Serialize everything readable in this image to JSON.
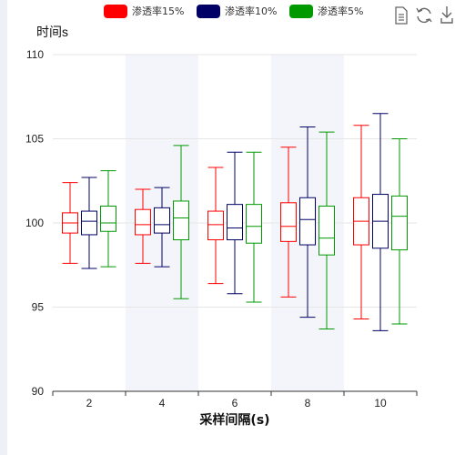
{
  "chart_data": {
    "type": "boxplot",
    "title": "",
    "xlabel": "采样间隔(s)",
    "ylabel": "时间s",
    "ylim": [
      90,
      110
    ],
    "yticks": [
      90,
      95,
      100,
      105,
      110
    ],
    "categories": [
      "2",
      "4",
      "6",
      "8",
      "10"
    ],
    "legend_position": "top",
    "grid": true,
    "banded_background": true,
    "series": [
      {
        "name": "渗透率15%",
        "color": "#ff0000",
        "boxes": [
          {
            "min": 97.6,
            "q1": 99.4,
            "median": 100.0,
            "q3": 100.6,
            "max": 102.4
          },
          {
            "min": 97.6,
            "q1": 99.3,
            "median": 99.9,
            "q3": 100.8,
            "max": 102.0
          },
          {
            "min": 96.4,
            "q1": 99.0,
            "median": 99.9,
            "q3": 100.7,
            "max": 103.3
          },
          {
            "min": 95.6,
            "q1": 98.9,
            "median": 99.8,
            "q3": 101.2,
            "max": 104.5
          },
          {
            "min": 94.3,
            "q1": 98.7,
            "median": 100.1,
            "q3": 101.5,
            "max": 105.8
          }
        ]
      },
      {
        "name": "渗透率10%",
        "color": "#000066",
        "boxes": [
          {
            "min": 97.3,
            "q1": 99.3,
            "median": 100.1,
            "q3": 100.7,
            "max": 102.7
          },
          {
            "min": 97.4,
            "q1": 99.4,
            "median": 99.9,
            "q3": 100.9,
            "max": 102.1
          },
          {
            "min": 95.8,
            "q1": 99.0,
            "median": 99.7,
            "q3": 101.1,
            "max": 104.2
          },
          {
            "min": 94.4,
            "q1": 98.7,
            "median": 100.2,
            "q3": 101.5,
            "max": 105.7
          },
          {
            "min": 93.6,
            "q1": 98.5,
            "median": 100.1,
            "q3": 101.7,
            "max": 106.5
          }
        ]
      },
      {
        "name": "渗透率5%",
        "color": "#009900",
        "boxes": [
          {
            "min": 97.4,
            "q1": 99.5,
            "median": 100.0,
            "q3": 101.0,
            "max": 103.1
          },
          {
            "min": 95.5,
            "q1": 99.0,
            "median": 100.3,
            "q3": 101.3,
            "max": 104.6
          },
          {
            "min": 95.3,
            "q1": 98.8,
            "median": 99.8,
            "q3": 101.1,
            "max": 104.2
          },
          {
            "min": 93.7,
            "q1": 98.1,
            "median": 99.1,
            "q3": 101.0,
            "max": 105.4
          },
          {
            "min": 94.0,
            "q1": 98.4,
            "median": 100.4,
            "q3": 101.6,
            "max": 105.0
          }
        ]
      }
    ]
  },
  "toolbox": {
    "icons": [
      "document-icon",
      "refresh-icon",
      "download-icon"
    ]
  }
}
